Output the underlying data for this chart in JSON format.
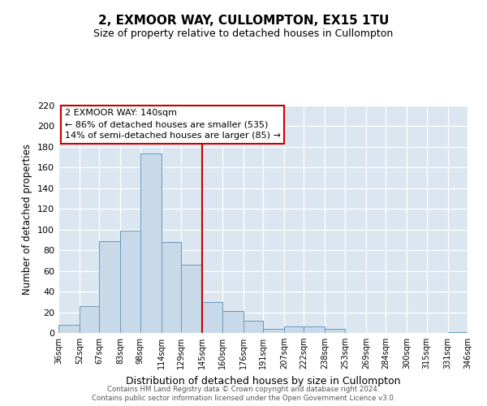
{
  "title": "2, EXMOOR WAY, CULLOMPTON, EX15 1TU",
  "subtitle": "Size of property relative to detached houses in Cullompton",
  "xlabel": "Distribution of detached houses by size in Cullompton",
  "ylabel": "Number of detached properties",
  "bar_color": "#c8daea",
  "bar_edge_color": "#6699bb",
  "background_color": "#dce6f0",
  "fig_background_color": "#ffffff",
  "grid_color": "#ffffff",
  "vline_x": 145,
  "vline_color": "#cc0000",
  "annotation_title": "2 EXMOOR WAY: 140sqm",
  "annotation_line1": "← 86% of detached houses are smaller (535)",
  "annotation_line2": "14% of semi-detached houses are larger (85) →",
  "annotation_box_color": "#cc0000",
  "bins": [
    36,
    52,
    67,
    83,
    98,
    114,
    129,
    145,
    160,
    176,
    191,
    207,
    222,
    238,
    253,
    269,
    284,
    300,
    315,
    331,
    346
  ],
  "values": [
    8,
    26,
    89,
    99,
    174,
    88,
    66,
    30,
    21,
    12,
    4,
    6,
    6,
    4,
    0,
    0,
    0,
    0,
    0,
    1
  ],
  "ylim": [
    0,
    220
  ],
  "yticks": [
    0,
    20,
    40,
    60,
    80,
    100,
    120,
    140,
    160,
    180,
    200,
    220
  ],
  "xtick_labels": [
    "36sqm",
    "52sqm",
    "67sqm",
    "83sqm",
    "98sqm",
    "114sqm",
    "129sqm",
    "145sqm",
    "160sqm",
    "176sqm",
    "191sqm",
    "207sqm",
    "222sqm",
    "238sqm",
    "253sqm",
    "269sqm",
    "284sqm",
    "300sqm",
    "315sqm",
    "331sqm",
    "346sqm"
  ],
  "footer1": "Contains HM Land Registry data © Crown copyright and database right 2024.",
  "footer2": "Contains public sector information licensed under the Open Government Licence v3.0."
}
